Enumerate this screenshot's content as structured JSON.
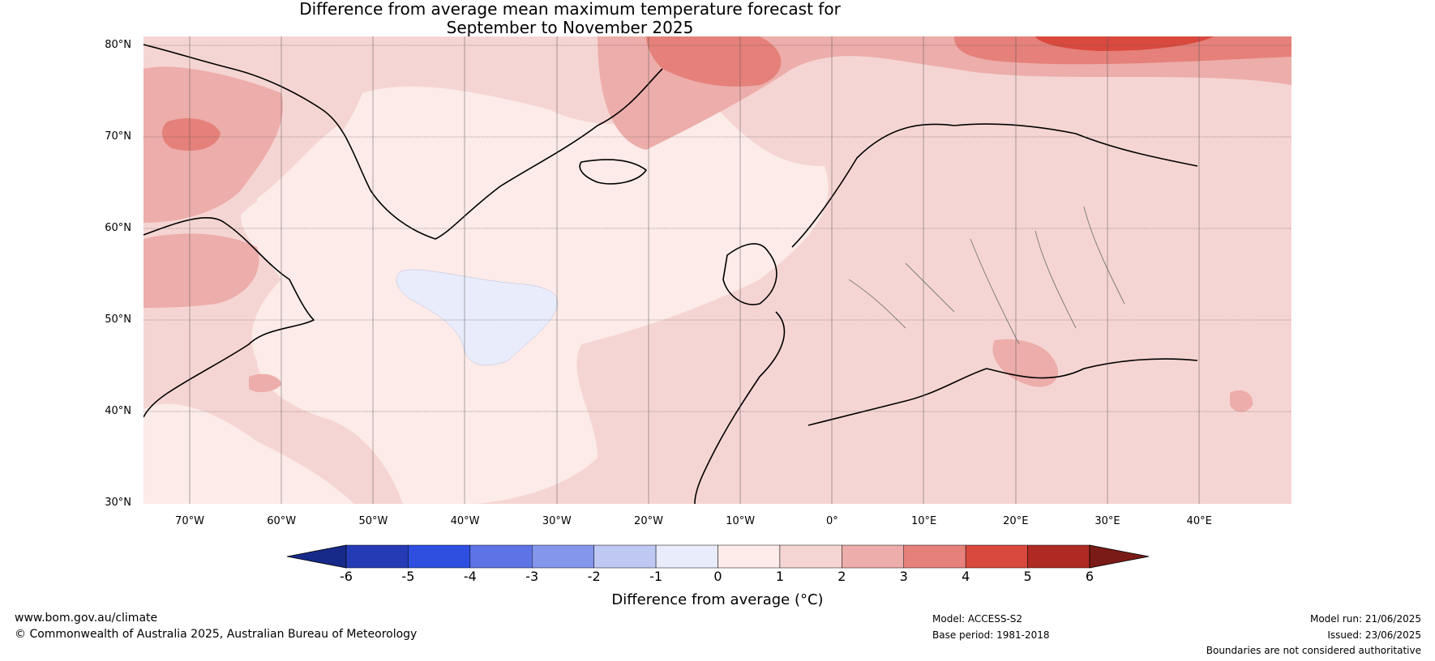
{
  "title": {
    "line1": "Difference from average mean maximum temperature forecast for",
    "line2": "September to November 2025"
  },
  "map": {
    "lat_labels": [
      "80°N",
      "70°N",
      "60°N",
      "50°N",
      "40°N",
      "30°N"
    ],
    "lon_labels": [
      "70°W",
      "60°W",
      "50°W",
      "40°W",
      "30°W",
      "20°W",
      "10°W",
      "0°",
      "10°E",
      "20°E",
      "30°E",
      "40°E"
    ],
    "colors": {
      "anomaly_0_1": "#fcebe8",
      "anomaly_1_2": "#f5d5d3",
      "anomaly_2_3": "#edadaa",
      "anomaly_3_4": "#e5807a",
      "anomaly_4_5": "#d9493e",
      "anomaly_neg1_0": "#e9ecfa",
      "coast": "#000000",
      "border": "#808080"
    }
  },
  "colorbar": {
    "ticks": [
      "-6",
      "-5",
      "-4",
      "-3",
      "-2",
      "-1",
      "0",
      "1",
      "2",
      "3",
      "4",
      "5",
      "6"
    ],
    "colors": [
      "#172a8a",
      "#253ab5",
      "#2f4fe0",
      "#5d73e6",
      "#8496ec",
      "#bfc8f3",
      "#e9ecfa",
      "#fcebe8",
      "#f5d5d3",
      "#edadaa",
      "#e5807a",
      "#d9493e",
      "#ae2a22",
      "#7a1b17"
    ],
    "label": "Difference from average (°C)"
  },
  "footer": {
    "site": "www.bom.gov.au/climate",
    "copyright": "© Commonwealth of Australia 2025, Australian Bureau of Meteorology",
    "model": "Model: ACCESS-S2",
    "base_period": "Base period: 1981-2018",
    "model_run": "Model run: 21/06/2025",
    "issued": "Issued: 23/06/2025",
    "disclaimer": "Boundaries are not considered authoritative"
  }
}
